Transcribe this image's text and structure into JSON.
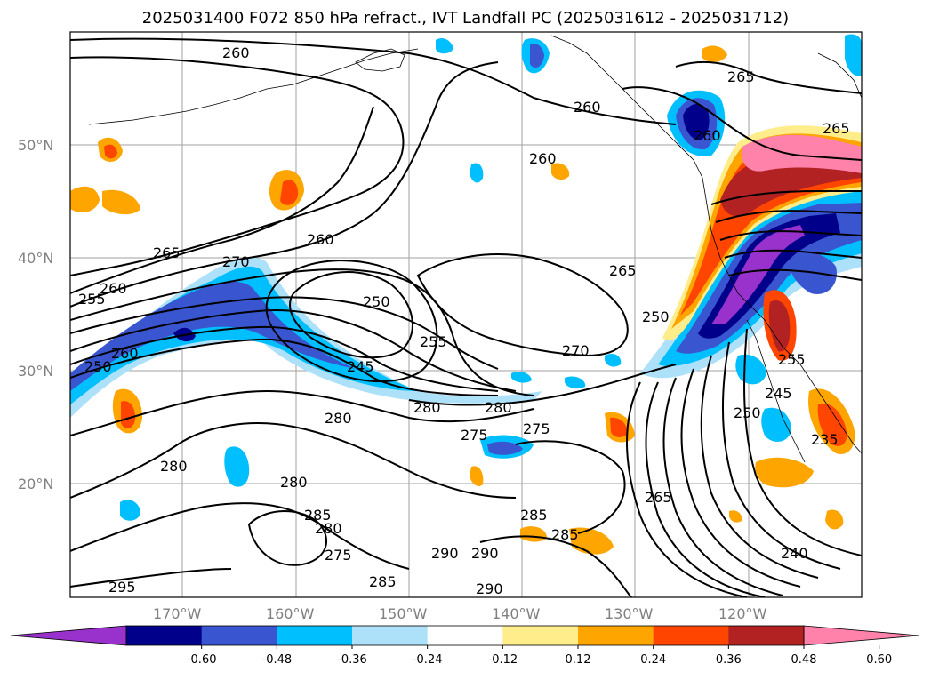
{
  "title": "2025031400 F072 850 hPa refract., IVT Landfall PC (2025031612 - 2025031712)",
  "lat_labels": [
    "50°N",
    "40°N",
    "30°N",
    "20°N"
  ],
  "lon_labels": [
    "170°W",
    "160°W",
    "150°W",
    "140°W",
    "130°W",
    "120°W"
  ],
  "contour_labels": [
    "260",
    "265",
    "265",
    "260",
    "260",
    "260",
    "265",
    "270",
    "260",
    "255",
    "260",
    "265",
    "250",
    "255",
    "245",
    "250",
    "260",
    "250",
    "270",
    "280",
    "280",
    "275",
    "280",
    "275",
    "280",
    "280",
    "285",
    "280",
    "275",
    "290",
    "285",
    "290",
    "290",
    "285",
    "285",
    "265",
    "240",
    "250",
    "245",
    "255",
    "235",
    "295"
  ],
  "colorbar": {
    "ticks": [
      "-0.60",
      "-0.48",
      "-0.36",
      "-0.24",
      "-0.12",
      "0.12",
      "0.24",
      "0.36",
      "0.48",
      "0.60"
    ],
    "colors": [
      "#9932CC",
      "#00008B",
      "#3A55D0",
      "#00BFFF",
      "#ADE1FA",
      "#FFFFFF",
      "#FFEC8B",
      "#FFA500",
      "#FF4500",
      "#B22222",
      "#FF82AB"
    ]
  }
}
